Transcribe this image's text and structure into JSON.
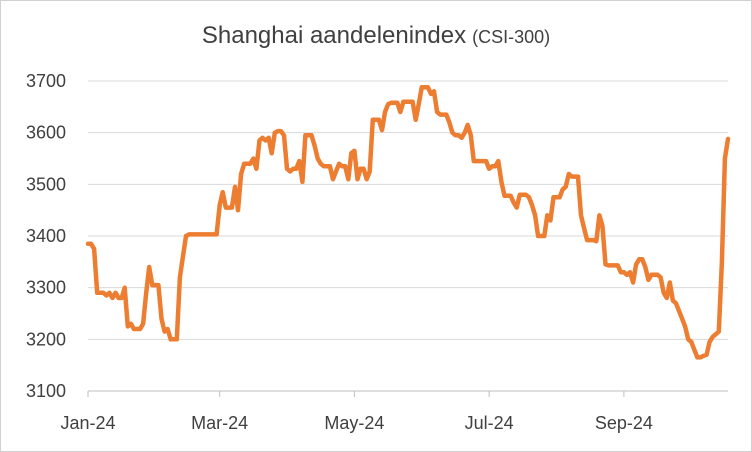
{
  "chart_data": {
    "type": "line",
    "title": "Shanghai aandelenindex",
    "subtitle": "(CSI-300)",
    "xlabel": "",
    "ylabel": "",
    "ylim": [
      3100,
      3700
    ],
    "yticks": [
      3100,
      3200,
      3300,
      3400,
      3500,
      3600,
      3700
    ],
    "xlim": [
      1,
      208
    ],
    "xtick_labels": [
      "Jan-24",
      "Mar-24",
      "May-24",
      "Jul-24",
      "Sep-24"
    ],
    "xtick_positions": [
      1,
      44,
      88,
      132,
      176
    ],
    "grid": "horizontal",
    "legend": "none",
    "color": "#ED7D31",
    "series": [
      {
        "values": [
          [
            1,
            3385
          ],
          [
            2,
            3385
          ],
          [
            3,
            3375
          ],
          [
            4,
            3290
          ],
          [
            5,
            3290
          ],
          [
            6,
            3290
          ],
          [
            7,
            3285
          ],
          [
            8,
            3290
          ],
          [
            9,
            3280
          ],
          [
            10,
            3290
          ],
          [
            11,
            3280
          ],
          [
            12,
            3280
          ],
          [
            13,
            3300
          ],
          [
            14,
            3225
          ],
          [
            15,
            3230
          ],
          [
            16,
            3220
          ],
          [
            17,
            3220
          ],
          [
            18,
            3220
          ],
          [
            19,
            3230
          ],
          [
            20,
            3290
          ],
          [
            21,
            3340
          ],
          [
            22,
            3305
          ],
          [
            23,
            3305
          ],
          [
            24,
            3305
          ],
          [
            25,
            3240
          ],
          [
            26,
            3215
          ],
          [
            27,
            3220
          ],
          [
            28,
            3200
          ],
          [
            29,
            3200
          ],
          [
            30,
            3200
          ],
          [
            31,
            3320
          ],
          [
            32,
            3360
          ],
          [
            33,
            3400
          ],
          [
            34,
            3403
          ],
          [
            35,
            3403
          ],
          [
            36,
            3403
          ],
          [
            37,
            3403
          ],
          [
            38,
            3403
          ],
          [
            39,
            3403
          ],
          [
            40,
            3403
          ],
          [
            41,
            3403
          ],
          [
            42,
            3403
          ],
          [
            43,
            3403
          ],
          [
            44,
            3460
          ],
          [
            45,
            3485
          ],
          [
            46,
            3455
          ],
          [
            47,
            3455
          ],
          [
            48,
            3455
          ],
          [
            49,
            3495
          ],
          [
            50,
            3450
          ],
          [
            51,
            3520
          ],
          [
            52,
            3540
          ],
          [
            53,
            3540
          ],
          [
            54,
            3540
          ],
          [
            55,
            3550
          ],
          [
            56,
            3530
          ],
          [
            57,
            3585
          ],
          [
            58,
            3590
          ],
          [
            59,
            3585
          ],
          [
            60,
            3590
          ],
          [
            61,
            3560
          ],
          [
            62,
            3600
          ],
          [
            63,
            3603
          ],
          [
            64,
            3603
          ],
          [
            65,
            3595
          ],
          [
            66,
            3530
          ],
          [
            67,
            3525
          ],
          [
            68,
            3530
          ],
          [
            69,
            3530
          ],
          [
            70,
            3545
          ],
          [
            71,
            3505
          ],
          [
            72,
            3595
          ],
          [
            73,
            3595
          ],
          [
            74,
            3595
          ],
          [
            75,
            3575
          ],
          [
            76,
            3550
          ],
          [
            77,
            3540
          ],
          [
            78,
            3535
          ],
          [
            79,
            3535
          ],
          [
            80,
            3535
          ],
          [
            81,
            3510
          ],
          [
            82,
            3525
          ],
          [
            83,
            3540
          ],
          [
            84,
            3535
          ],
          [
            85,
            3535
          ],
          [
            86,
            3510
          ],
          [
            87,
            3560
          ],
          [
            88,
            3565
          ],
          [
            89,
            3510
          ],
          [
            90,
            3530
          ],
          [
            91,
            3530
          ],
          [
            92,
            3510
          ],
          [
            93,
            3525
          ],
          [
            94,
            3625
          ],
          [
            95,
            3625
          ],
          [
            96,
            3625
          ],
          [
            97,
            3605
          ],
          [
            98,
            3640
          ],
          [
            99,
            3655
          ],
          [
            100,
            3658
          ],
          [
            101,
            3658
          ],
          [
            102,
            3658
          ],
          [
            103,
            3640
          ],
          [
            104,
            3660
          ],
          [
            105,
            3660
          ],
          [
            106,
            3660
          ],
          [
            107,
            3660
          ],
          [
            108,
            3625
          ],
          [
            109,
            3655
          ],
          [
            110,
            3688
          ],
          [
            111,
            3688
          ],
          [
            112,
            3688
          ],
          [
            113,
            3675
          ],
          [
            114,
            3680
          ],
          [
            115,
            3640
          ],
          [
            116,
            3635
          ],
          [
            117,
            3635
          ],
          [
            118,
            3635
          ],
          [
            119,
            3620
          ],
          [
            120,
            3600
          ],
          [
            121,
            3595
          ],
          [
            122,
            3595
          ],
          [
            123,
            3590
          ],
          [
            124,
            3600
          ],
          [
            125,
            3615
          ],
          [
            126,
            3595
          ],
          [
            127,
            3545
          ],
          [
            128,
            3545
          ],
          [
            129,
            3545
          ],
          [
            130,
            3545
          ],
          [
            131,
            3545
          ],
          [
            132,
            3530
          ],
          [
            133,
            3535
          ],
          [
            134,
            3535
          ],
          [
            135,
            3545
          ],
          [
            136,
            3505
          ],
          [
            137,
            3478
          ],
          [
            138,
            3478
          ],
          [
            139,
            3478
          ],
          [
            140,
            3465
          ],
          [
            141,
            3455
          ],
          [
            142,
            3480
          ],
          [
            143,
            3480
          ],
          [
            144,
            3480
          ],
          [
            145,
            3475
          ],
          [
            146,
            3460
          ],
          [
            147,
            3440
          ],
          [
            148,
            3400
          ],
          [
            149,
            3400
          ],
          [
            150,
            3400
          ],
          [
            151,
            3440
          ],
          [
            152,
            3430
          ],
          [
            153,
            3475
          ],
          [
            154,
            3475
          ],
          [
            155,
            3475
          ],
          [
            156,
            3490
          ],
          [
            157,
            3495
          ],
          [
            158,
            3520
          ],
          [
            159,
            3515
          ],
          [
            160,
            3515
          ],
          [
            161,
            3515
          ],
          [
            162,
            3440
          ],
          [
            163,
            3415
          ],
          [
            164,
            3392
          ],
          [
            165,
            3392
          ],
          [
            166,
            3392
          ],
          [
            167,
            3390
          ],
          [
            168,
            3440
          ],
          [
            169,
            3420
          ],
          [
            170,
            3345
          ],
          [
            171,
            3343
          ],
          [
            172,
            3343
          ],
          [
            173,
            3343
          ],
          [
            174,
            3343
          ],
          [
            175,
            3330
          ],
          [
            176,
            3330
          ],
          [
            177,
            3325
          ],
          [
            178,
            3330
          ],
          [
            179,
            3310
          ],
          [
            180,
            3345
          ],
          [
            181,
            3355
          ],
          [
            182,
            3355
          ],
          [
            183,
            3340
          ],
          [
            184,
            3315
          ],
          [
            185,
            3325
          ],
          [
            186,
            3325
          ],
          [
            187,
            3325
          ],
          [
            188,
            3320
          ],
          [
            189,
            3290
          ],
          [
            190,
            3280
          ],
          [
            191,
            3310
          ],
          [
            192,
            3275
          ],
          [
            193,
            3270
          ],
          [
            194,
            3255
          ],
          [
            195,
            3240
          ],
          [
            196,
            3225
          ],
          [
            197,
            3200
          ],
          [
            198,
            3195
          ],
          [
            199,
            3180
          ],
          [
            200,
            3165
          ],
          [
            201,
            3165
          ],
          [
            202,
            3168
          ],
          [
            203,
            3170
          ],
          [
            204,
            3195
          ],
          [
            205,
            3205
          ],
          [
            206,
            3210
          ],
          [
            207,
            3215
          ],
          [
            208,
            3350
          ],
          [
            209,
            3550
          ],
          [
            210,
            3588
          ]
        ]
      }
    ]
  }
}
